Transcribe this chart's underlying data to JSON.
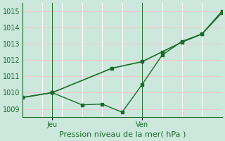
{
  "xlabel": "Pression niveau de la mer( hPa )",
  "background_color": "#cce8dd",
  "grid_color_h": "#f0c8c8",
  "grid_color_v": "#ffffff",
  "line_color": "#1a6b2a",
  "ylim": [
    1008.5,
    1015.5
  ],
  "yticks": [
    1009,
    1010,
    1011,
    1012,
    1013,
    1014,
    1015
  ],
  "xlim": [
    0,
    10
  ],
  "x_jeu": 1.5,
  "x_ven": 6.0,
  "n_vgrid": 10,
  "series1_x": [
    0.0,
    1.5,
    3.0,
    4.0,
    5.0,
    6.0,
    7.0,
    8.0,
    9.0,
    10.0
  ],
  "series1_y": [
    1009.7,
    1010.0,
    1009.25,
    1009.3,
    1008.8,
    1010.5,
    1012.3,
    1013.15,
    1013.6,
    1014.9
  ],
  "series2_x": [
    0.0,
    1.5,
    4.5,
    6.0,
    7.0,
    8.0,
    9.0,
    10.0
  ],
  "series2_y": [
    1009.7,
    1010.0,
    1011.5,
    1011.9,
    1012.5,
    1013.1,
    1013.6,
    1015.0
  ],
  "marker_size": 3.0,
  "linewidth1": 1.0,
  "linewidth2": 1.2,
  "xlabel_fontsize": 8,
  "tick_fontsize": 7
}
